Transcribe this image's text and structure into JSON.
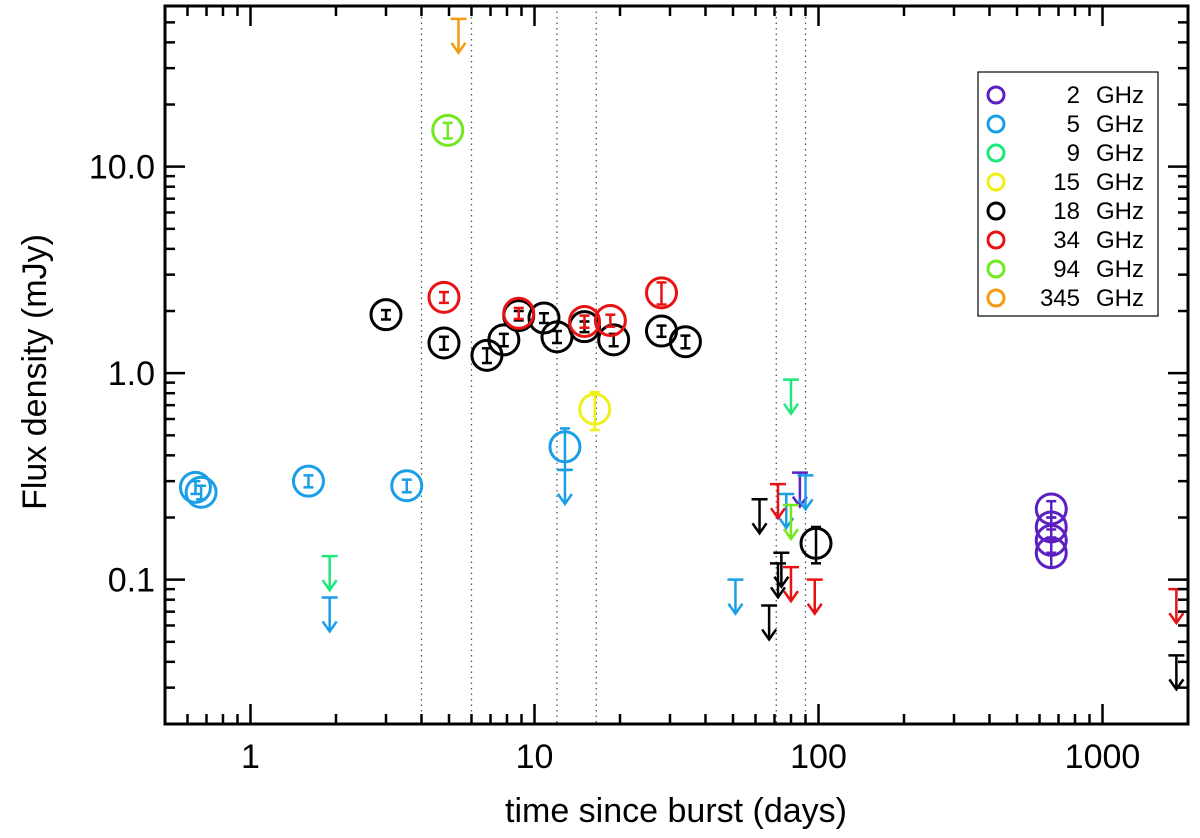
{
  "chart_data": {
    "type": "scatter",
    "xlabel": "time since burst (days)",
    "ylabel": "Flux density (mJy)",
    "xscale": "log",
    "yscale": "log",
    "xlim": [
      0.5,
      2000
    ],
    "ylim": [
      0.02,
      60
    ],
    "x_major_ticks": [
      1,
      10,
      100,
      1000
    ],
    "x_tick_labels": [
      "1",
      "10",
      "100",
      "1000"
    ],
    "y_major_ticks": [
      0.1,
      1.0,
      10.0
    ],
    "y_tick_labels": [
      "0.1",
      "1.0",
      "10.0"
    ],
    "vertical_lines": [
      4,
      6,
      12,
      16.5,
      71,
      90
    ],
    "legend_position": "top-right",
    "series": [
      {
        "name": "2 GHz",
        "label_num": "2",
        "label_unit": "GHz",
        "color": "#5b1fc2",
        "detections": [
          {
            "x": 660,
            "y": 0.22,
            "err": 0.02
          },
          {
            "x": 660,
            "y": 0.18,
            "err": 0.02
          },
          {
            "x": 660,
            "y": 0.155,
            "err": 0.02
          },
          {
            "x": 660,
            "y": 0.135,
            "err": 0.02
          }
        ],
        "upper_limits": [
          {
            "x": 86,
            "y": 0.33
          }
        ]
      },
      {
        "name": "5 GHz",
        "label_num": "5",
        "label_unit": "GHz",
        "color": "#1a9ee8",
        "detections": [
          {
            "x": 0.64,
            "y": 0.28,
            "err": 0.02
          },
          {
            "x": 0.67,
            "y": 0.265,
            "err": 0.02
          },
          {
            "x": 1.6,
            "y": 0.3,
            "err": 0.02
          },
          {
            "x": 3.55,
            "y": 0.285,
            "err": 0.02
          },
          {
            "x": 12.8,
            "y": 0.44,
            "err": 0.1
          }
        ],
        "upper_limits": [
          {
            "x": 1.9,
            "y": 0.082
          },
          {
            "x": 12.8,
            "y": 0.34
          },
          {
            "x": 51,
            "y": 0.1
          },
          {
            "x": 77,
            "y": 0.26
          },
          {
            "x": 90,
            "y": 0.32
          }
        ]
      },
      {
        "name": "9 GHz",
        "label_num": "9",
        "label_unit": "GHz",
        "color": "#1ee87a",
        "detections": [],
        "upper_limits": [
          {
            "x": 1.9,
            "y": 0.13
          },
          {
            "x": 80,
            "y": 0.93
          }
        ]
      },
      {
        "name": "15 GHz",
        "label_num": "15",
        "label_unit": "GHz",
        "color": "#f0f019",
        "detections": [
          {
            "x": 16.3,
            "y": 0.67,
            "err": 0.14
          }
        ],
        "upper_limits": []
      },
      {
        "name": "18 GHz",
        "label_num": "18",
        "label_unit": "GHz",
        "color": "#000000",
        "detections": [
          {
            "x": 3.0,
            "y": 1.92,
            "err": 0.1
          },
          {
            "x": 4.8,
            "y": 1.4,
            "err": 0.1
          },
          {
            "x": 6.8,
            "y": 1.22,
            "err": 0.1
          },
          {
            "x": 7.8,
            "y": 1.45,
            "err": 0.1
          },
          {
            "x": 8.8,
            "y": 1.9,
            "err": 0.1
          },
          {
            "x": 10.8,
            "y": 1.85,
            "err": 0.1
          },
          {
            "x": 12.0,
            "y": 1.5,
            "err": 0.1
          },
          {
            "x": 15.0,
            "y": 1.68,
            "err": 0.1
          },
          {
            "x": 19.0,
            "y": 1.45,
            "err": 0.1
          },
          {
            "x": 28.0,
            "y": 1.6,
            "err": 0.1
          },
          {
            "x": 34.0,
            "y": 1.42,
            "err": 0.1
          },
          {
            "x": 98.0,
            "y": 0.15,
            "err": 0.03
          }
        ],
        "upper_limits": [
          {
            "x": 62,
            "y": 0.245
          },
          {
            "x": 67,
            "y": 0.075
          },
          {
            "x": 74,
            "y": 0.135
          },
          {
            "x": 72,
            "y": 0.12
          },
          {
            "x": 1820,
            "y": 0.043
          }
        ]
      },
      {
        "name": "34 GHz",
        "label_num": "34",
        "label_unit": "GHz",
        "color": "#e81212",
        "detections": [
          {
            "x": 4.8,
            "y": 2.33,
            "err": 0.14
          },
          {
            "x": 8.8,
            "y": 1.95,
            "err": 0.12
          },
          {
            "x": 15.0,
            "y": 1.78,
            "err": 0.12
          },
          {
            "x": 18.5,
            "y": 1.8,
            "err": 0.12
          },
          {
            "x": 28.0,
            "y": 2.45,
            "err": 0.3
          }
        ],
        "upper_limits": [
          {
            "x": 72,
            "y": 0.29
          },
          {
            "x": 80,
            "y": 0.115
          },
          {
            "x": 97,
            "y": 0.1
          },
          {
            "x": 1820,
            "y": 0.09
          }
        ]
      },
      {
        "name": "94 GHz",
        "label_num": "94",
        "label_unit": "GHz",
        "color": "#72e81e",
        "detections": [
          {
            "x": 4.95,
            "y": 15.0,
            "err": 1.3
          }
        ],
        "upper_limits": [
          {
            "x": 80,
            "y": 0.23
          }
        ]
      },
      {
        "name": "345 GHz",
        "label_num": "345",
        "label_unit": "GHz",
        "color": "#f59a0f",
        "detections": [],
        "upper_limits": [
          {
            "x": 5.4,
            "y": 52
          }
        ]
      }
    ]
  }
}
